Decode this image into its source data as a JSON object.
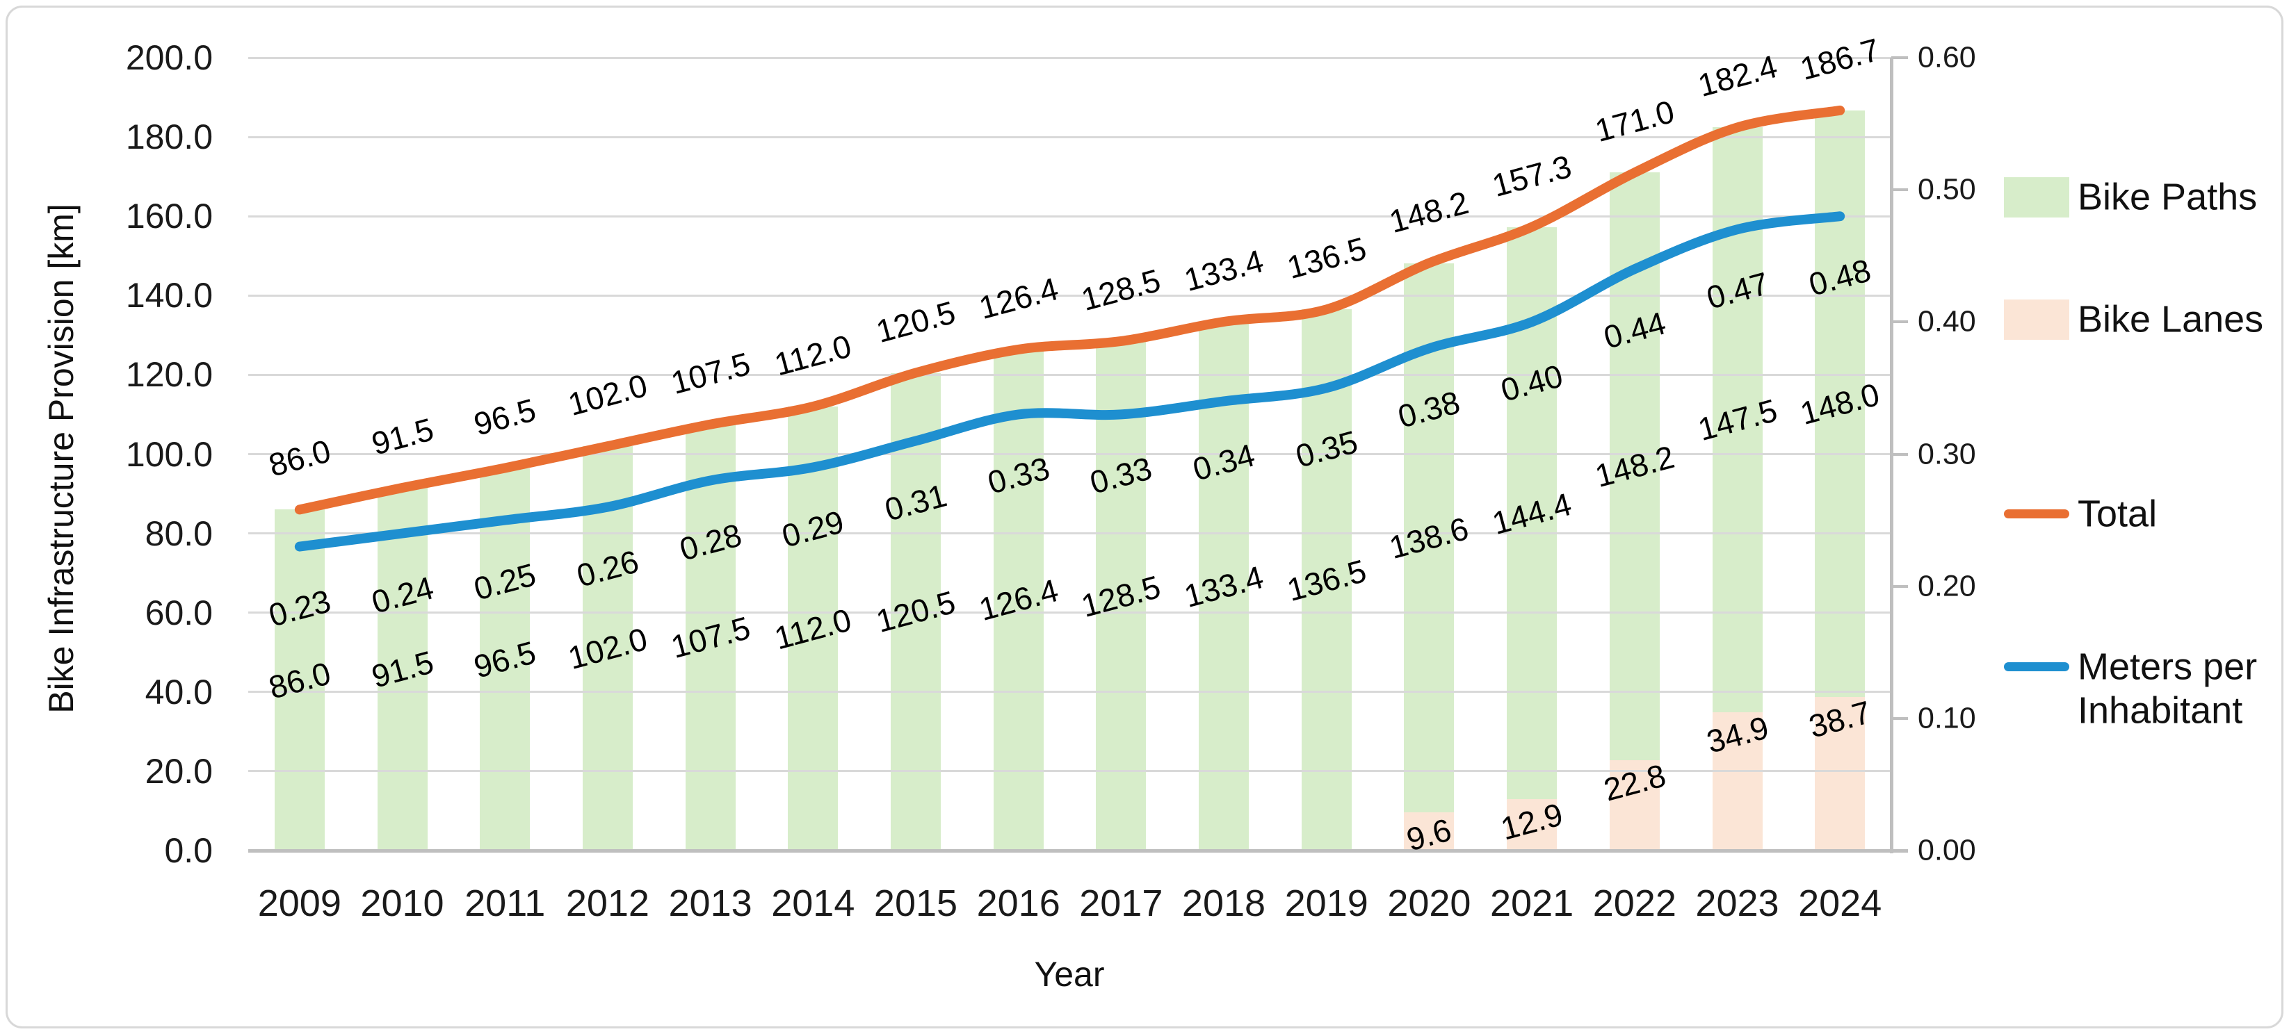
{
  "chart_data": {
    "type": "combo-stacked-bar-line",
    "title": "",
    "x": {
      "label": "Year",
      "categories": [
        "2009",
        "2010",
        "2011",
        "2012",
        "2013",
        "2014",
        "2015",
        "2016",
        "2017",
        "2018",
        "2019",
        "2020",
        "2021",
        "2022",
        "2023",
        "2024"
      ]
    },
    "y_left": {
      "label": "Bike Infrastructure Provision [km]",
      "min": 0,
      "max": 200,
      "step": 20,
      "tick_labels": [
        "0.0",
        "20.0",
        "40.0",
        "60.0",
        "80.0",
        "100.0",
        "120.0",
        "140.0",
        "160.0",
        "180.0",
        "200.0"
      ]
    },
    "y_right": {
      "label": "",
      "min": 0,
      "max": 0.6,
      "step": 0.1,
      "tick_labels": [
        "0.00",
        "0.10",
        "0.20",
        "0.30",
        "0.40",
        "0.50",
        "0.60"
      ]
    },
    "grid": "on",
    "legend_position": "right",
    "series": [
      {
        "name": "Bike Lanes",
        "type": "bar",
        "stack_order": 1,
        "axis": "left",
        "color": "#fbe5d6",
        "label_placement": "segment-top",
        "values": [
          0,
          0,
          0,
          0,
          0,
          0,
          0,
          0,
          0,
          0,
          0,
          9.6,
          12.9,
          22.8,
          34.9,
          38.7
        ],
        "labels": [
          "",
          "",
          "",
          "",
          "",
          "",
          "",
          "",
          "",
          "",
          "",
          "9.6",
          "12.9",
          "22.8",
          "34.9",
          "38.7"
        ]
      },
      {
        "name": "Bike Paths",
        "type": "bar",
        "stack_order": 2,
        "axis": "left",
        "color": "#d7edca",
        "label_placement": "segment-center",
        "values": [
          86.0,
          91.5,
          96.5,
          102.0,
          107.5,
          112.0,
          120.5,
          126.4,
          128.5,
          133.4,
          136.5,
          138.6,
          144.4,
          148.2,
          147.5,
          148.0
        ],
        "labels": [
          "86.0",
          "91.5",
          "96.5",
          "102.0",
          "107.5",
          "112.0",
          "120.5",
          "126.4",
          "128.5",
          "133.4",
          "136.5",
          "138.6",
          "144.4",
          "148.2",
          "147.5",
          "148.0"
        ]
      },
      {
        "name": "Total",
        "type": "line",
        "axis": "left",
        "color": "#e96f32",
        "label_placement": "above",
        "values": [
          86.0,
          91.5,
          96.5,
          102.0,
          107.5,
          112.0,
          120.5,
          126.4,
          128.5,
          133.4,
          136.5,
          148.2,
          157.3,
          171.0,
          182.4,
          186.7
        ],
        "labels": [
          "86.0",
          "91.5",
          "96.5",
          "102.0",
          "107.5",
          "112.0",
          "120.5",
          "126.4",
          "128.5",
          "133.4",
          "136.5",
          "148.2",
          "157.3",
          "171.0",
          "182.4",
          "186.7"
        ]
      },
      {
        "name": "Meters per Inhabitant",
        "type": "line",
        "axis": "right",
        "color": "#1e8fd0",
        "label_placement": "below",
        "values": [
          0.23,
          0.24,
          0.25,
          0.26,
          0.28,
          0.29,
          0.31,
          0.33,
          0.33,
          0.34,
          0.35,
          0.38,
          0.4,
          0.44,
          0.47,
          0.48
        ],
        "labels": [
          "0.23",
          "0.24",
          "0.25",
          "0.26",
          "0.28",
          "0.29",
          "0.31",
          "0.33",
          "0.33",
          "0.34",
          "0.35",
          "0.38",
          "0.40",
          "0.44",
          "0.47",
          "0.48"
        ]
      }
    ],
    "legend": [
      {
        "label": "Bike Paths",
        "marker": "bar",
        "color": "#d7edca"
      },
      {
        "label": "Bike Lanes",
        "marker": "bar",
        "color": "#fbe5d6"
      },
      {
        "label": "Total",
        "marker": "line",
        "color": "#e96f32"
      },
      {
        "label": "Meters per Inhabitant",
        "marker": "line",
        "color": "#1e8fd0"
      }
    ],
    "style": {
      "gridline_color": "#d9d9d9",
      "axis_line_color": "#bfbfbf",
      "background": "#ffffff"
    }
  }
}
